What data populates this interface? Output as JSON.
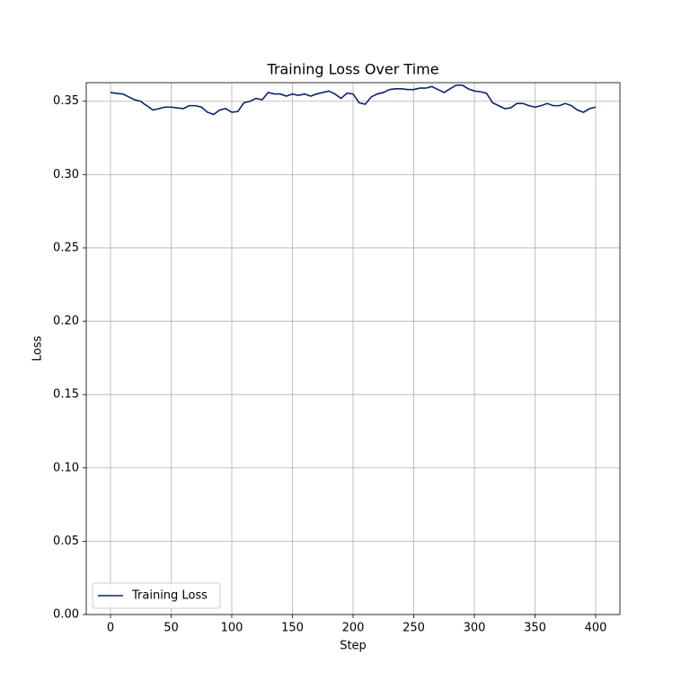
{
  "chart_data": {
    "type": "line",
    "title": "Training Loss Over Time",
    "x_label": "Step",
    "y_label": "Loss",
    "x": [
      0,
      5,
      10,
      15,
      20,
      25,
      28,
      30,
      35,
      40,
      45,
      50,
      55,
      60,
      65,
      70,
      75,
      80,
      85,
      90,
      95,
      100,
      105,
      110,
      115,
      120,
      125,
      130,
      135,
      140,
      145,
      150,
      155,
      160,
      165,
      170,
      175,
      180,
      185,
      190,
      195,
      200,
      205,
      210,
      215,
      220,
      225,
      230,
      235,
      240,
      245,
      250,
      255,
      260,
      265,
      270,
      275,
      280,
      285,
      290,
      295,
      300,
      305,
      310,
      315,
      320,
      325,
      330,
      335,
      340,
      345,
      350,
      355,
      360,
      365,
      370,
      375,
      380,
      385,
      390,
      395,
      400
    ],
    "series": [
      {
        "name": "Training Loss",
        "color": "#0b2470",
        "values": [
          0.356,
          0.3554,
          0.355,
          0.353,
          0.351,
          0.35,
          0.348,
          0.347,
          0.344,
          0.345,
          0.346,
          0.346,
          0.3455,
          0.345,
          0.347,
          0.347,
          0.346,
          0.3425,
          0.341,
          0.344,
          0.345,
          0.3425,
          0.343,
          0.349,
          0.35,
          0.352,
          0.351,
          0.356,
          0.355,
          0.355,
          0.3535,
          0.355,
          0.354,
          0.355,
          0.3535,
          0.355,
          0.356,
          0.357,
          0.355,
          0.352,
          0.3555,
          0.355,
          0.349,
          0.348,
          0.353,
          0.355,
          0.356,
          0.358,
          0.3585,
          0.3585,
          0.358,
          0.358,
          0.359,
          0.359,
          0.36,
          0.358,
          0.356,
          0.3585,
          0.361,
          0.361,
          0.3585,
          0.357,
          0.3565,
          0.3555,
          0.349,
          0.347,
          0.345,
          0.3455,
          0.3485,
          0.3485,
          0.347,
          0.346,
          0.347,
          0.3485,
          0.347,
          0.347,
          0.3485,
          0.347,
          0.344,
          0.3425,
          0.345,
          0.346
        ]
      }
    ],
    "xlim": [
      -20,
      420
    ],
    "ylim": [
      0,
      0.3627
    ],
    "xticks": [
      0,
      50,
      100,
      150,
      200,
      250,
      300,
      350,
      400
    ],
    "yticks": [
      {
        "value": 0,
        "label": "0.00"
      },
      {
        "value": 0.05,
        "label": "0.05"
      },
      {
        "value": 0.1,
        "label": "0.10"
      },
      {
        "value": 0.15,
        "label": "0.15"
      },
      {
        "value": 0.2,
        "label": "0.20"
      },
      {
        "value": 0.25,
        "label": "0.25"
      },
      {
        "value": 0.3,
        "label": "0.30"
      },
      {
        "value": 0.35,
        "label": "0.35"
      }
    ],
    "grid": true,
    "legend": "lower left"
  }
}
